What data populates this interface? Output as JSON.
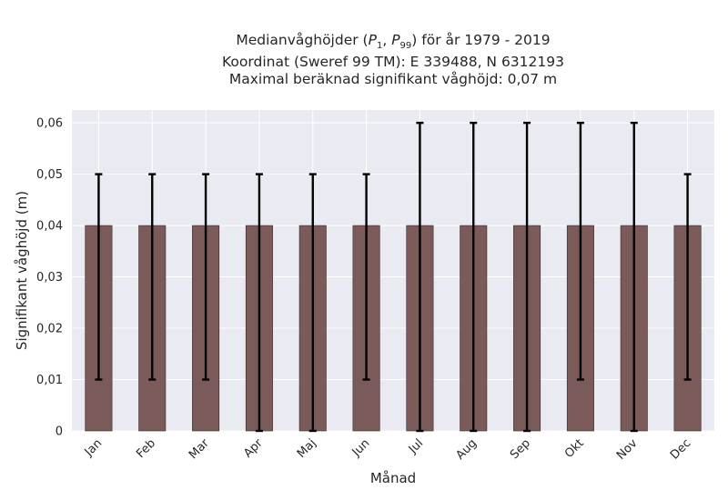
{
  "chart_data": {
    "type": "bar",
    "title_lines": [
      "Medianvåghöjder (P1, P99) för år 1979 - 2019",
      "Koordinat (Sweref 99 TM): E 339488, N 6312193",
      "Maximal beräknad signifikant våghöjd: 0,07 m"
    ],
    "xlabel": "Månad",
    "ylabel": "Signifikant våghöjd (m)",
    "categories": [
      "Jan",
      "Feb",
      "Mar",
      "Apr",
      "Maj",
      "Jun",
      "Jul",
      "Aug",
      "Sep",
      "Okt",
      "Nov",
      "Dec"
    ],
    "values": [
      0.04,
      0.04,
      0.04,
      0.04,
      0.04,
      0.04,
      0.04,
      0.04,
      0.04,
      0.04,
      0.04,
      0.04
    ],
    "error_low": [
      0.01,
      0.01,
      0.01,
      0.0,
      0.0,
      0.01,
      0.0,
      0.0,
      0.0,
      0.01,
      0.0,
      0.01
    ],
    "error_high": [
      0.05,
      0.05,
      0.05,
      0.05,
      0.05,
      0.05,
      0.06,
      0.06,
      0.06,
      0.06,
      0.06,
      0.05
    ],
    "ylim": [
      0,
      0.0625
    ],
    "yticks": [
      0,
      0.01,
      0.02,
      0.03,
      0.04,
      0.05,
      0.06
    ],
    "ytick_labels": [
      "0",
      "0,01",
      "0,02",
      "0,03",
      "0,04",
      "0,05",
      "0,06"
    ],
    "grid": true,
    "colors": {
      "bar": "#7b5a5a",
      "bar_edge": "#3a2a2a",
      "error": "#000000",
      "plot_bg": "#eaeaf2",
      "grid": "#ffffff"
    }
  }
}
